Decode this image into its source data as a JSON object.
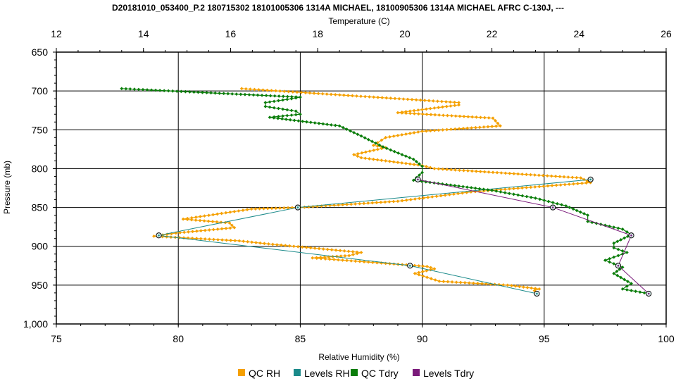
{
  "chart_data": {
    "type": "line",
    "title": "D20181010_053400_P.2 180715302 18101005306 1314A MICHAEL, 18100905306 1314A MICHAEL AFRC C-130J, ---",
    "top_axis_label": "Temperature (C)",
    "bottom_axis_label": "Relative Humidity (%)",
    "left_axis_label": "Pressure (mb)",
    "temperature_axis": {
      "range": [
        12,
        26
      ],
      "ticks": [
        "12",
        "14",
        "16",
        "18",
        "20",
        "22",
        "24",
        "26"
      ]
    },
    "rh_axis": {
      "range": [
        75,
        100
      ],
      "ticks": [
        "75",
        "80",
        "85",
        "90",
        "95",
        "100"
      ]
    },
    "pressure_axis": {
      "range": [
        650,
        1000
      ],
      "inverted": true,
      "ticks": [
        "650",
        "700",
        "750",
        "800",
        "850",
        "900",
        "950",
        "1,000"
      ]
    },
    "grid": true,
    "legend_position": "bottom",
    "series": [
      {
        "name": "QC RH",
        "axis": "rh",
        "color": "#f5a000",
        "marker": "diamond",
        "points": [
          [
            82.6,
            697
          ],
          [
            91.5,
            715
          ],
          [
            91.5,
            718
          ],
          [
            89.0,
            728
          ],
          [
            92.9,
            735
          ],
          [
            93.2,
            745
          ],
          [
            90.0,
            752
          ],
          [
            88.5,
            760
          ],
          [
            88.0,
            770
          ],
          [
            88.5,
            773
          ],
          [
            87.2,
            782
          ],
          [
            87.5,
            786
          ],
          [
            90.0,
            796
          ],
          [
            90.5,
            800
          ],
          [
            96.5,
            812
          ],
          [
            96.9,
            818
          ],
          [
            92.0,
            830
          ],
          [
            89.0,
            842
          ],
          [
            85.0,
            850
          ],
          [
            83.0,
            852
          ],
          [
            80.2,
            865
          ],
          [
            82.1,
            870
          ],
          [
            82.3,
            876
          ],
          [
            79.9,
            883
          ],
          [
            79.0,
            887
          ],
          [
            82.5,
            893
          ],
          [
            83.7,
            897
          ],
          [
            87.5,
            908
          ],
          [
            87.0,
            912
          ],
          [
            85.5,
            915
          ],
          [
            88.5,
            922
          ],
          [
            90.2,
            926
          ],
          [
            90.5,
            929
          ],
          [
            89.7,
            935
          ],
          [
            90.7,
            945
          ],
          [
            93.5,
            950
          ],
          [
            94.8,
            955
          ],
          [
            94.6,
            957
          ]
        ]
      },
      {
        "name": "Levels RH",
        "axis": "rh",
        "color": "#1b8a8a",
        "marker": "circle",
        "points": [
          [
            96.9,
            814
          ],
          [
            84.9,
            850
          ],
          [
            79.2,
            886
          ],
          [
            89.5,
            925
          ],
          [
            94.7,
            961
          ]
        ]
      },
      {
        "name": "QC Tdry",
        "axis": "temperature",
        "color": "#0a7d0a",
        "marker": "diamond",
        "points": [
          [
            13.5,
            697
          ],
          [
            17.6,
            708
          ],
          [
            17.4,
            710
          ],
          [
            16.8,
            715
          ],
          [
            16.8,
            720
          ],
          [
            17.5,
            726
          ],
          [
            17.6,
            730
          ],
          [
            16.9,
            734
          ],
          [
            18.5,
            745
          ],
          [
            19.0,
            758
          ],
          [
            19.5,
            772
          ],
          [
            20.2,
            788
          ],
          [
            20.4,
            797
          ],
          [
            20.4,
            805
          ],
          [
            20.2,
            815
          ],
          [
            22.0,
            828
          ],
          [
            23.0,
            838
          ],
          [
            23.7,
            848
          ],
          [
            24.2,
            860
          ],
          [
            24.2,
            868
          ],
          [
            25.0,
            878
          ],
          [
            25.2,
            885
          ],
          [
            24.8,
            896
          ],
          [
            24.8,
            902
          ],
          [
            25.1,
            908
          ],
          [
            24.6,
            918
          ],
          [
            25.0,
            927
          ],
          [
            24.8,
            935
          ],
          [
            25.2,
            948
          ],
          [
            25.0,
            955
          ],
          [
            25.5,
            960
          ]
        ]
      },
      {
        "name": "Levels Tdry",
        "axis": "temperature",
        "color": "#7b1b7b",
        "marker": "circle",
        "points": [
          [
            20.3,
            814
          ],
          [
            23.4,
            850
          ],
          [
            25.2,
            886
          ],
          [
            24.9,
            925
          ],
          [
            25.6,
            961
          ]
        ]
      }
    ]
  }
}
